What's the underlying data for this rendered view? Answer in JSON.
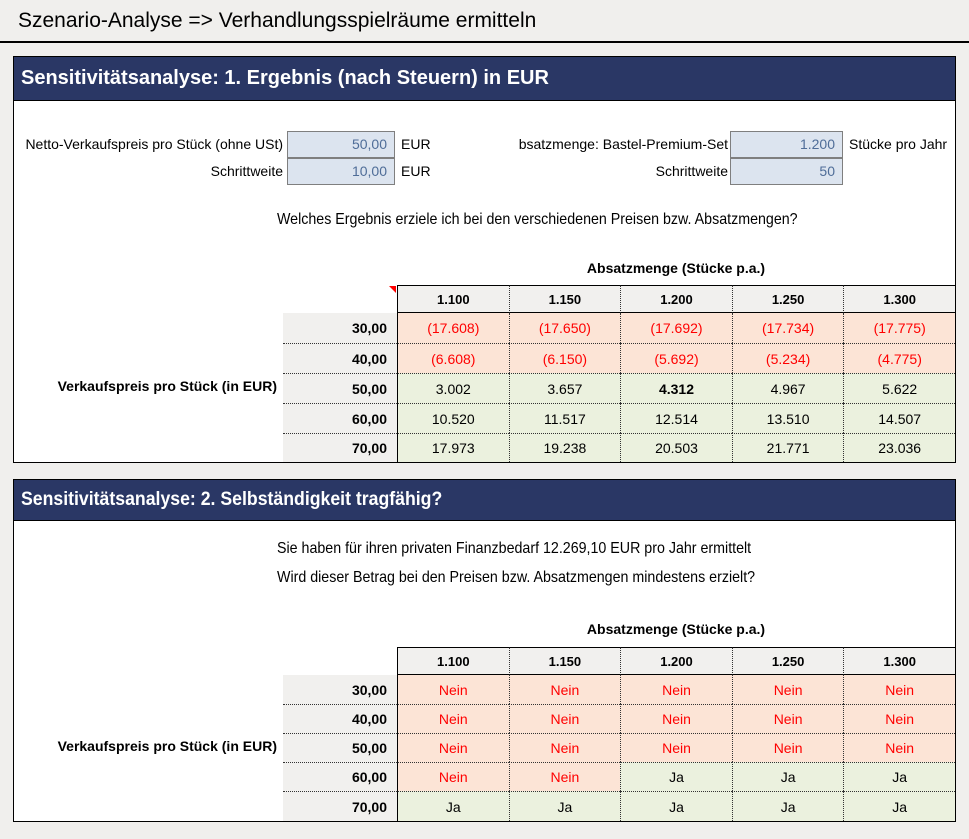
{
  "page": {
    "title": "Szenario-Analyse => Verhandlungsspielräume ermitteln"
  },
  "colors": {
    "page_bg": "#f0efed",
    "header_bg": "#2a3765",
    "input_bg": "#dce4ef",
    "input_text": "#4f6d98",
    "grid_gray": "#f1f0ee",
    "neg_bg": "#fce4d6",
    "neg_text": "#ff0000",
    "pos_bg": "#ebf1de",
    "marker_red": "#ff0000"
  },
  "section1": {
    "title": "Sensitivitätsanalyse: 1. Ergebnis (nach Steuern) in EUR",
    "inputs": {
      "price": {
        "label": "Netto-Verkaufspreis pro Stück (ohne USt)",
        "value": "50,00",
        "unit": "EUR"
      },
      "price_step": {
        "label": "Schrittweite",
        "value": "10,00",
        "unit": "EUR"
      },
      "quantity": {
        "label": "bsatzmenge: Bastel-Premium-Set",
        "value": "1.200",
        "unit": "Stücke pro Jahr"
      },
      "quantity_step": {
        "label": "Schrittweite",
        "value": "50",
        "unit": ""
      }
    },
    "question": "Welches Ergebnis erziele ich bei den verschiedenen Preisen bzw. Absatzmengen?",
    "table": {
      "column_group_label": "Absatzmenge (Stücke p.a.)",
      "row_group_label": "Verkaufspreis pro Stück (in EUR)",
      "has_comment_marker": true,
      "columns": [
        "1.100",
        "1.150",
        "1.200",
        "1.250",
        "1.300"
      ],
      "rows": [
        {
          "header": "30,00",
          "cells": [
            {
              "text": "(17.608)",
              "state": "neg"
            },
            {
              "text": "(17.650)",
              "state": "neg"
            },
            {
              "text": "(17.692)",
              "state": "neg"
            },
            {
              "text": "(17.734)",
              "state": "neg"
            },
            {
              "text": "(17.775)",
              "state": "neg"
            }
          ]
        },
        {
          "header": "40,00",
          "cells": [
            {
              "text": "(6.608)",
              "state": "neg"
            },
            {
              "text": "(6.150)",
              "state": "neg"
            },
            {
              "text": "(5.692)",
              "state": "neg"
            },
            {
              "text": "(5.234)",
              "state": "neg"
            },
            {
              "text": "(4.775)",
              "state": "neg"
            }
          ]
        },
        {
          "header": "50,00",
          "cells": [
            {
              "text": "3.002",
              "state": "pos"
            },
            {
              "text": "3.657",
              "state": "pos"
            },
            {
              "text": "4.312",
              "state": "pos",
              "bold": true
            },
            {
              "text": "4.967",
              "state": "pos"
            },
            {
              "text": "5.622",
              "state": "pos"
            }
          ]
        },
        {
          "header": "60,00",
          "cells": [
            {
              "text": "10.520",
              "state": "pos"
            },
            {
              "text": "11.517",
              "state": "pos"
            },
            {
              "text": "12.514",
              "state": "pos"
            },
            {
              "text": "13.510",
              "state": "pos"
            },
            {
              "text": "14.507",
              "state": "pos"
            }
          ]
        },
        {
          "header": "70,00",
          "cells": [
            {
              "text": "17.973",
              "state": "pos"
            },
            {
              "text": "19.238",
              "state": "pos"
            },
            {
              "text": "20.503",
              "state": "pos"
            },
            {
              "text": "21.771",
              "state": "pos"
            },
            {
              "text": "23.036",
              "state": "pos"
            }
          ]
        }
      ]
    }
  },
  "section2": {
    "title": "Sensitivitätsanalyse: 2. Selbständigkeit tragfähig?",
    "line1": "Sie haben für ihren privaten Finanzbedarf 12.269,10 EUR pro Jahr ermittelt",
    "line2": "Wird dieser Betrag bei den Preisen bzw. Absatzmengen mindestens erzielt?",
    "table": {
      "column_group_label": "Absatzmenge (Stücke p.a.)",
      "row_group_label": "Verkaufspreis pro Stück (in EUR)",
      "has_comment_marker": false,
      "columns": [
        "1.100",
        "1.150",
        "1.200",
        "1.250",
        "1.300"
      ],
      "rows": [
        {
          "header": "30,00",
          "cells": [
            {
              "text": "Nein",
              "state": "neg"
            },
            {
              "text": "Nein",
              "state": "neg"
            },
            {
              "text": "Nein",
              "state": "neg"
            },
            {
              "text": "Nein",
              "state": "neg"
            },
            {
              "text": "Nein",
              "state": "neg"
            }
          ]
        },
        {
          "header": "40,00",
          "cells": [
            {
              "text": "Nein",
              "state": "neg"
            },
            {
              "text": "Nein",
              "state": "neg"
            },
            {
              "text": "Nein",
              "state": "neg"
            },
            {
              "text": "Nein",
              "state": "neg"
            },
            {
              "text": "Nein",
              "state": "neg"
            }
          ]
        },
        {
          "header": "50,00",
          "cells": [
            {
              "text": "Nein",
              "state": "neg"
            },
            {
              "text": "Nein",
              "state": "neg"
            },
            {
              "text": "Nein",
              "state": "neg"
            },
            {
              "text": "Nein",
              "state": "neg"
            },
            {
              "text": "Nein",
              "state": "neg"
            }
          ]
        },
        {
          "header": "60,00",
          "cells": [
            {
              "text": "Nein",
              "state": "neg"
            },
            {
              "text": "Nein",
              "state": "neg"
            },
            {
              "text": "Ja",
              "state": "pos"
            },
            {
              "text": "Ja",
              "state": "pos"
            },
            {
              "text": "Ja",
              "state": "pos"
            }
          ]
        },
        {
          "header": "70,00",
          "cells": [
            {
              "text": "Ja",
              "state": "pos"
            },
            {
              "text": "Ja",
              "state": "pos"
            },
            {
              "text": "Ja",
              "state": "pos"
            },
            {
              "text": "Ja",
              "state": "pos"
            },
            {
              "text": "Ja",
              "state": "pos"
            }
          ]
        }
      ]
    }
  }
}
